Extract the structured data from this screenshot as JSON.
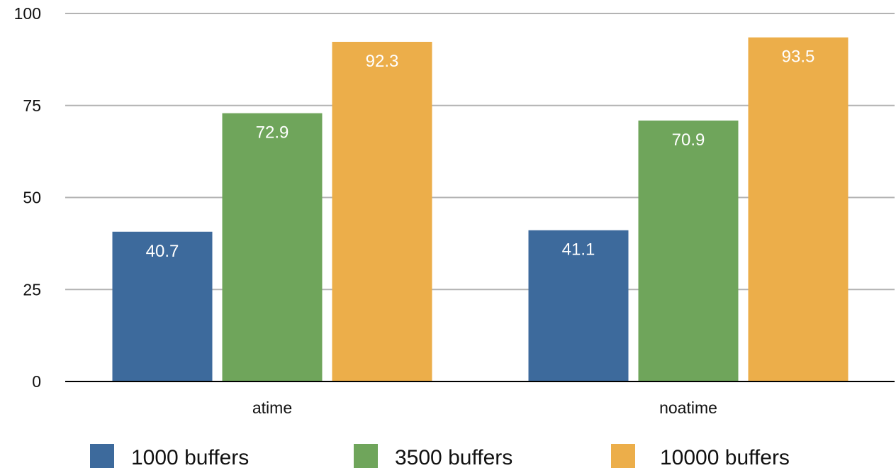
{
  "chart_data": {
    "type": "bar",
    "title": "",
    "xlabel": "",
    "ylabel": "",
    "categories": [
      "atime",
      "noatime"
    ],
    "series": [
      {
        "name": "1000 buffers",
        "values": [
          40.7,
          41.1
        ],
        "color": "#3d6a9c"
      },
      {
        "name": "3500 buffers",
        "values": [
          72.9,
          70.9
        ],
        "color": "#6fa55b"
      },
      {
        "name": "10000 buffers",
        "values": [
          92.3,
          93.5
        ],
        "color": "#ecae4a"
      }
    ],
    "ylim": [
      0,
      100
    ],
    "yticks": [
      0,
      25,
      50,
      75,
      100
    ],
    "grid": true,
    "legend_position": "bottom"
  }
}
